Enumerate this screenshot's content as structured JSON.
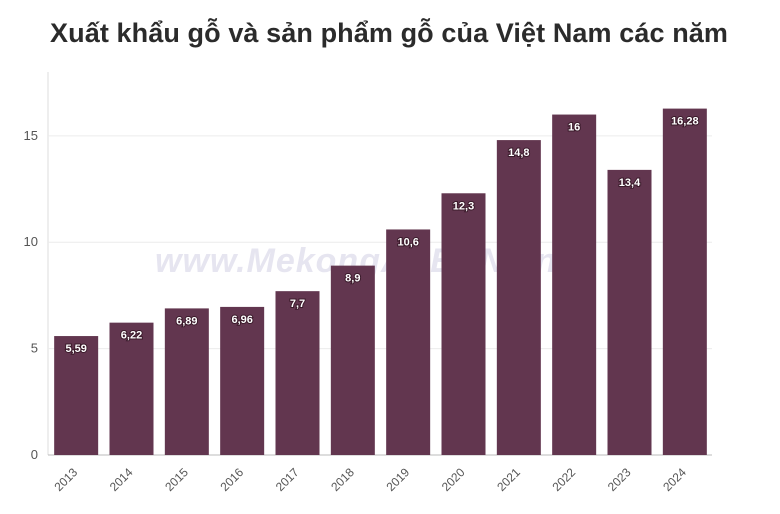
{
  "title": "Xuất khẩu gỗ và sản phẩm gỗ của Việt Nam các năm",
  "watermark": "www.MekongASEAN.vn",
  "chart_data": {
    "type": "bar",
    "categories": [
      "2013",
      "2014",
      "2015",
      "2016",
      "2017",
      "2018",
      "2019",
      "2020",
      "2021",
      "2022",
      "2023",
      "2024"
    ],
    "values": [
      5.59,
      6.22,
      6.89,
      6.96,
      7.7,
      8.9,
      10.6,
      12.3,
      14.8,
      16,
      13.4,
      16.28
    ],
    "data_labels": [
      "5,59",
      "6,22",
      "6,89",
      "6,96",
      "7,7",
      "8,9",
      "10,6",
      "12,3",
      "14,8",
      "16",
      "13,4",
      "16,28"
    ],
    "ylim": [
      0,
      18
    ],
    "yticks": [
      0,
      5,
      10,
      15
    ],
    "bar_color": "#62364f",
    "grid": true
  }
}
